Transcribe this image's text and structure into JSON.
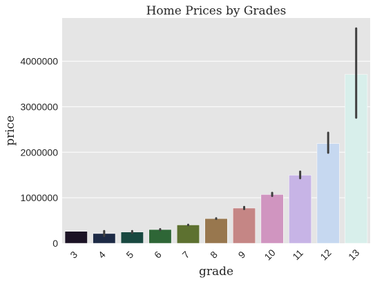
{
  "chart_data": {
    "type": "bar",
    "title": "Home Prices by Grades",
    "xlabel": "grade",
    "ylabel": "price",
    "categories": [
      "3",
      "4",
      "5",
      "6",
      "7",
      "8",
      "9",
      "10",
      "11",
      "12",
      "13"
    ],
    "values": [
      262000,
      214000,
      248000,
      302000,
      403000,
      543000,
      774000,
      1072000,
      1497000,
      2192000,
      3710000
    ],
    "error_low": [
      262000,
      160000,
      225000,
      290000,
      398000,
      535000,
      752000,
      1040000,
      1430000,
      1990000,
      2760000
    ],
    "error_high": [
      262000,
      270000,
      270000,
      312000,
      408000,
      551000,
      800000,
      1108000,
      1575000,
      2430000,
      4720000
    ],
    "bar_colors": [
      "#1c1325",
      "#1d2a45",
      "#194840",
      "#2e6636",
      "#5d7130",
      "#98774e",
      "#c58685",
      "#d095c0",
      "#c7b4e6",
      "#c6d8f0",
      "#d8efeb"
    ],
    "yticks": [
      0,
      1000000,
      2000000,
      3000000,
      4000000
    ],
    "ytick_labels": [
      "0",
      "1000000",
      "2000000",
      "3000000",
      "4000000"
    ],
    "ylim": [
      0,
      4950000
    ],
    "grid": true,
    "background": "#e5e5e5",
    "grid_color": "#ffffff",
    "errorbar_color": "#3f3f3f"
  }
}
